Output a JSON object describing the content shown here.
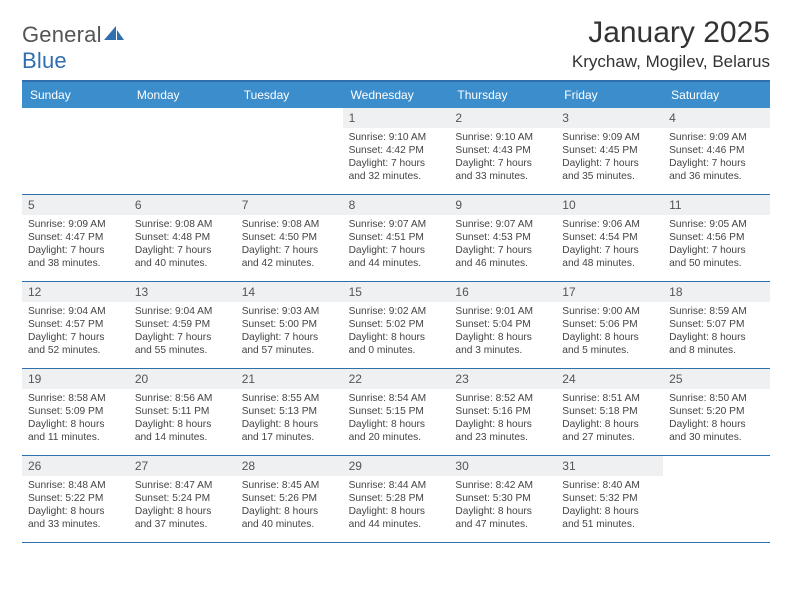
{
  "brand": {
    "name_a": "General",
    "name_b": "Blue"
  },
  "title": "January 2025",
  "location": "Krychaw, Mogilev, Belarus",
  "colors": {
    "header_bar": "#3c8dcc",
    "rule": "#2f6fae",
    "daynum_bg": "#eef0f2",
    "text": "#444444",
    "bg": "#ffffff"
  },
  "dayNames": [
    "Sunday",
    "Monday",
    "Tuesday",
    "Wednesday",
    "Thursday",
    "Friday",
    "Saturday"
  ],
  "weeks": [
    [
      null,
      null,
      null,
      {
        "n": "1",
        "sr": "Sunrise: 9:10 AM",
        "ss": "Sunset: 4:42 PM",
        "d1": "Daylight: 7 hours",
        "d2": "and 32 minutes."
      },
      {
        "n": "2",
        "sr": "Sunrise: 9:10 AM",
        "ss": "Sunset: 4:43 PM",
        "d1": "Daylight: 7 hours",
        "d2": "and 33 minutes."
      },
      {
        "n": "3",
        "sr": "Sunrise: 9:09 AM",
        "ss": "Sunset: 4:45 PM",
        "d1": "Daylight: 7 hours",
        "d2": "and 35 minutes."
      },
      {
        "n": "4",
        "sr": "Sunrise: 9:09 AM",
        "ss": "Sunset: 4:46 PM",
        "d1": "Daylight: 7 hours",
        "d2": "and 36 minutes."
      }
    ],
    [
      {
        "n": "5",
        "sr": "Sunrise: 9:09 AM",
        "ss": "Sunset: 4:47 PM",
        "d1": "Daylight: 7 hours",
        "d2": "and 38 minutes."
      },
      {
        "n": "6",
        "sr": "Sunrise: 9:08 AM",
        "ss": "Sunset: 4:48 PM",
        "d1": "Daylight: 7 hours",
        "d2": "and 40 minutes."
      },
      {
        "n": "7",
        "sr": "Sunrise: 9:08 AM",
        "ss": "Sunset: 4:50 PM",
        "d1": "Daylight: 7 hours",
        "d2": "and 42 minutes."
      },
      {
        "n": "8",
        "sr": "Sunrise: 9:07 AM",
        "ss": "Sunset: 4:51 PM",
        "d1": "Daylight: 7 hours",
        "d2": "and 44 minutes."
      },
      {
        "n": "9",
        "sr": "Sunrise: 9:07 AM",
        "ss": "Sunset: 4:53 PM",
        "d1": "Daylight: 7 hours",
        "d2": "and 46 minutes."
      },
      {
        "n": "10",
        "sr": "Sunrise: 9:06 AM",
        "ss": "Sunset: 4:54 PM",
        "d1": "Daylight: 7 hours",
        "d2": "and 48 minutes."
      },
      {
        "n": "11",
        "sr": "Sunrise: 9:05 AM",
        "ss": "Sunset: 4:56 PM",
        "d1": "Daylight: 7 hours",
        "d2": "and 50 minutes."
      }
    ],
    [
      {
        "n": "12",
        "sr": "Sunrise: 9:04 AM",
        "ss": "Sunset: 4:57 PM",
        "d1": "Daylight: 7 hours",
        "d2": "and 52 minutes."
      },
      {
        "n": "13",
        "sr": "Sunrise: 9:04 AM",
        "ss": "Sunset: 4:59 PM",
        "d1": "Daylight: 7 hours",
        "d2": "and 55 minutes."
      },
      {
        "n": "14",
        "sr": "Sunrise: 9:03 AM",
        "ss": "Sunset: 5:00 PM",
        "d1": "Daylight: 7 hours",
        "d2": "and 57 minutes."
      },
      {
        "n": "15",
        "sr": "Sunrise: 9:02 AM",
        "ss": "Sunset: 5:02 PM",
        "d1": "Daylight: 8 hours",
        "d2": "and 0 minutes."
      },
      {
        "n": "16",
        "sr": "Sunrise: 9:01 AM",
        "ss": "Sunset: 5:04 PM",
        "d1": "Daylight: 8 hours",
        "d2": "and 3 minutes."
      },
      {
        "n": "17",
        "sr": "Sunrise: 9:00 AM",
        "ss": "Sunset: 5:06 PM",
        "d1": "Daylight: 8 hours",
        "d2": "and 5 minutes."
      },
      {
        "n": "18",
        "sr": "Sunrise: 8:59 AM",
        "ss": "Sunset: 5:07 PM",
        "d1": "Daylight: 8 hours",
        "d2": "and 8 minutes."
      }
    ],
    [
      {
        "n": "19",
        "sr": "Sunrise: 8:58 AM",
        "ss": "Sunset: 5:09 PM",
        "d1": "Daylight: 8 hours",
        "d2": "and 11 minutes."
      },
      {
        "n": "20",
        "sr": "Sunrise: 8:56 AM",
        "ss": "Sunset: 5:11 PM",
        "d1": "Daylight: 8 hours",
        "d2": "and 14 minutes."
      },
      {
        "n": "21",
        "sr": "Sunrise: 8:55 AM",
        "ss": "Sunset: 5:13 PM",
        "d1": "Daylight: 8 hours",
        "d2": "and 17 minutes."
      },
      {
        "n": "22",
        "sr": "Sunrise: 8:54 AM",
        "ss": "Sunset: 5:15 PM",
        "d1": "Daylight: 8 hours",
        "d2": "and 20 minutes."
      },
      {
        "n": "23",
        "sr": "Sunrise: 8:52 AM",
        "ss": "Sunset: 5:16 PM",
        "d1": "Daylight: 8 hours",
        "d2": "and 23 minutes."
      },
      {
        "n": "24",
        "sr": "Sunrise: 8:51 AM",
        "ss": "Sunset: 5:18 PM",
        "d1": "Daylight: 8 hours",
        "d2": "and 27 minutes."
      },
      {
        "n": "25",
        "sr": "Sunrise: 8:50 AM",
        "ss": "Sunset: 5:20 PM",
        "d1": "Daylight: 8 hours",
        "d2": "and 30 minutes."
      }
    ],
    [
      {
        "n": "26",
        "sr": "Sunrise: 8:48 AM",
        "ss": "Sunset: 5:22 PM",
        "d1": "Daylight: 8 hours",
        "d2": "and 33 minutes."
      },
      {
        "n": "27",
        "sr": "Sunrise: 8:47 AM",
        "ss": "Sunset: 5:24 PM",
        "d1": "Daylight: 8 hours",
        "d2": "and 37 minutes."
      },
      {
        "n": "28",
        "sr": "Sunrise: 8:45 AM",
        "ss": "Sunset: 5:26 PM",
        "d1": "Daylight: 8 hours",
        "d2": "and 40 minutes."
      },
      {
        "n": "29",
        "sr": "Sunrise: 8:44 AM",
        "ss": "Sunset: 5:28 PM",
        "d1": "Daylight: 8 hours",
        "d2": "and 44 minutes."
      },
      {
        "n": "30",
        "sr": "Sunrise: 8:42 AM",
        "ss": "Sunset: 5:30 PM",
        "d1": "Daylight: 8 hours",
        "d2": "and 47 minutes."
      },
      {
        "n": "31",
        "sr": "Sunrise: 8:40 AM",
        "ss": "Sunset: 5:32 PM",
        "d1": "Daylight: 8 hours",
        "d2": "and 51 minutes."
      },
      null
    ]
  ]
}
